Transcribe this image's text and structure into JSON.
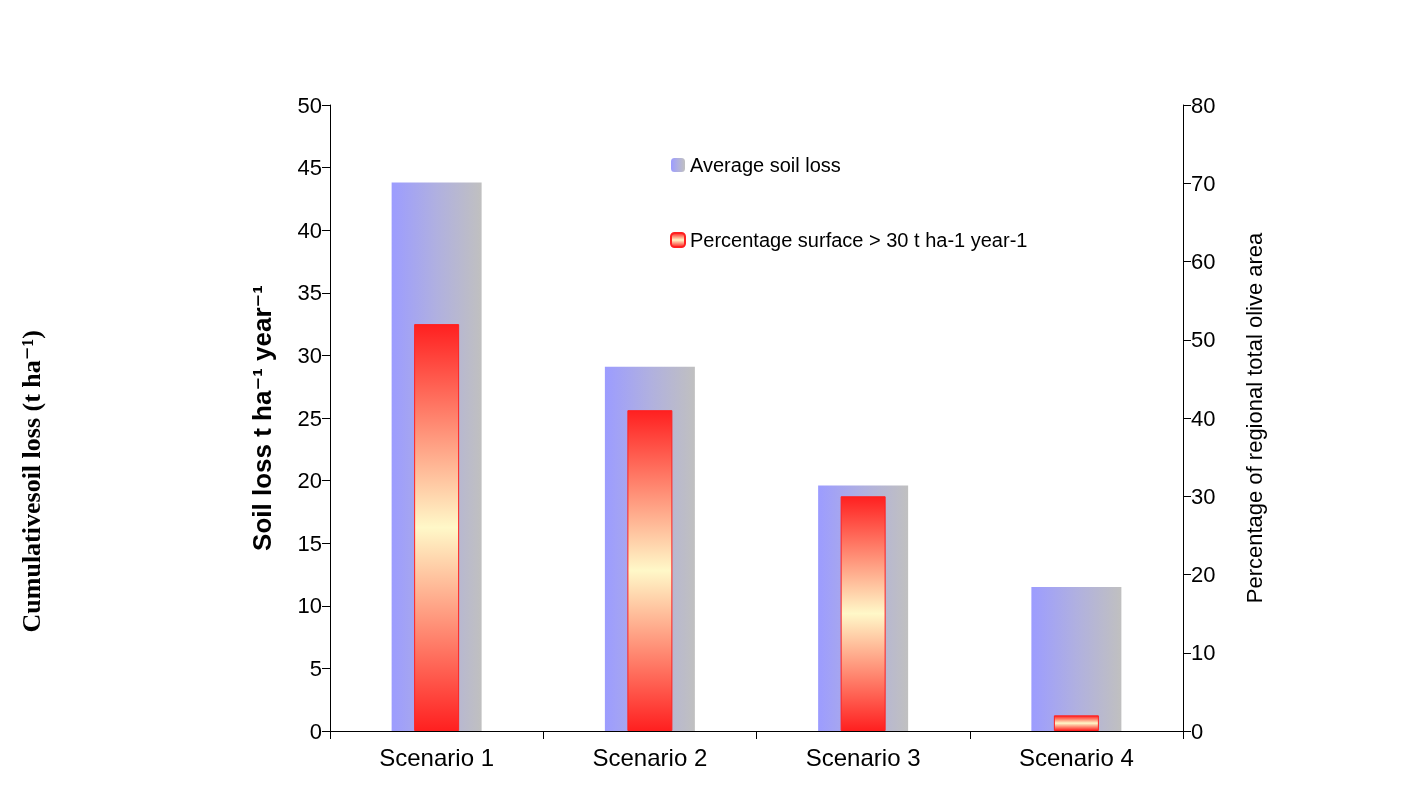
{
  "chart_data": {
    "type": "bar",
    "categories": [
      "Scenario 1",
      "Scenario 2",
      "Scenario 3",
      "Scenario 4"
    ],
    "ylabel": "Soil loss t ha⁻¹ year⁻¹",
    "y2label": "Percentage of regional total olive area",
    "ylim": [
      0,
      50
    ],
    "yticks": [
      0,
      5,
      10,
      15,
      20,
      25,
      30,
      35,
      40,
      45,
      50
    ],
    "y2lim": [
      0,
      80
    ],
    "y2ticks": [
      0,
      10,
      20,
      30,
      40,
      50,
      60,
      70,
      80
    ],
    "series": [
      {
        "name": "Average soil loss",
        "color": "#b0b0e0",
        "values": [
          43.8,
          29.1,
          19.6,
          11.5
        ]
      },
      {
        "name": "Percentage surface > 30 t ha-1 year-1",
        "color": "#ff2020",
        "axis": "y2",
        "values": [
          52,
          41,
          30,
          2
        ]
      }
    ],
    "legend": "top",
    "grid": false,
    "annotations": [
      "Cumulativesoil loss (t ha⁻¹)"
    ]
  }
}
